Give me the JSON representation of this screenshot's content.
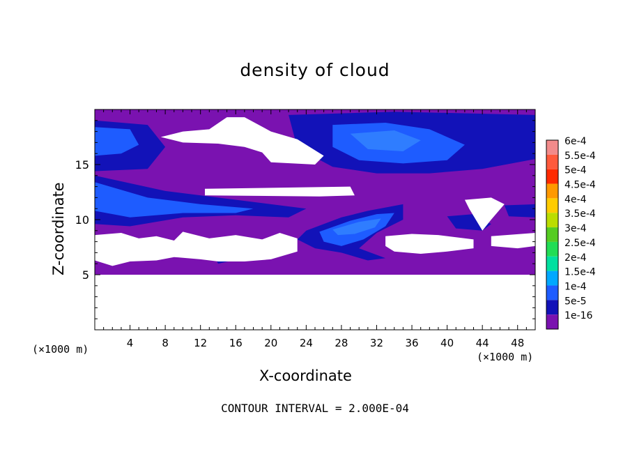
{
  "chart_data": {
    "type": "heatmap",
    "title": "density of cloud",
    "xlabel": "X-coordinate",
    "ylabel": "Z-coordinate",
    "x_unit": "(×1000 m)",
    "y_unit": "(×1000 m)",
    "xlim": [
      0,
      50
    ],
    "ylim": [
      0,
      20
    ],
    "x_ticks": [
      4,
      8,
      12,
      16,
      20,
      24,
      28,
      32,
      36,
      40,
      44,
      48
    ],
    "y_ticks": [
      5,
      10,
      15
    ],
    "colorbar": {
      "labels": [
        "6e-4",
        "5.5e-4",
        "5e-4",
        "4.5e-4",
        "4e-4",
        "3.5e-4",
        "3e-4",
        "2.5e-4",
        "2e-4",
        "1.5e-4",
        "1e-4",
        "5e-5",
        "1e-16"
      ],
      "colors": [
        "#f28b8b",
        "#ff5a3c",
        "#ff2a00",
        "#ff9900",
        "#ffcc00",
        "#bbdd00",
        "#55cc22",
        "#22dd55",
        "#00e0a0",
        "#00a8ff",
        "#1e5cff",
        "#1212b8",
        "#7a12b0"
      ]
    },
    "field_colors": {
      "base": "#7a12b0",
      "level_5e-5": "#1212b8",
      "level_1e-4": "#1e5cff",
      "level_1.5e-4": "#2f7dff",
      "no_cloud": "#ffffff"
    },
    "regions": [
      {
        "level": "clear",
        "polygon": [
          [
            0,
            0
          ],
          [
            50,
            0
          ],
          [
            50,
            5
          ],
          [
            0,
            5
          ]
        ]
      },
      {
        "level": "5e-5",
        "polygon": [
          [
            22,
            19.5
          ],
          [
            34,
            19.8
          ],
          [
            50,
            19.5
          ],
          [
            50,
            15.5
          ],
          [
            44,
            14.6
          ],
          [
            38,
            14.2
          ],
          [
            32,
            14.2
          ],
          [
            27,
            14.8
          ],
          [
            23,
            16.5
          ]
        ]
      },
      {
        "level": "1e-4",
        "polygon": [
          [
            27,
            18.6
          ],
          [
            33,
            18.8
          ],
          [
            38,
            18.2
          ],
          [
            42,
            16.8
          ],
          [
            40,
            15.4
          ],
          [
            35,
            15.1
          ],
          [
            30,
            15.4
          ],
          [
            27,
            16.6
          ]
        ]
      },
      {
        "level": "1.5e-4",
        "polygon": [
          [
            29,
            17.8
          ],
          [
            34,
            18.1
          ],
          [
            37,
            17.2
          ],
          [
            35,
            16.2
          ],
          [
            31,
            16.4
          ]
        ]
      },
      {
        "level": "5e-5",
        "polygon": [
          [
            0,
            19
          ],
          [
            6,
            18.6
          ],
          [
            8,
            16.6
          ],
          [
            6,
            14.6
          ],
          [
            0,
            14.4
          ]
        ]
      },
      {
        "level": "1e-4",
        "polygon": [
          [
            0,
            18.4
          ],
          [
            4,
            18.2
          ],
          [
            5,
            16.8
          ],
          [
            3,
            16
          ],
          [
            0,
            15.8
          ]
        ]
      },
      {
        "level": "5e-5",
        "polygon": [
          [
            0,
            14
          ],
          [
            8,
            12.6
          ],
          [
            14,
            12
          ],
          [
            20,
            11.4
          ],
          [
            24,
            11
          ],
          [
            22,
            10.2
          ],
          [
            16,
            10.4
          ],
          [
            10,
            10.2
          ],
          [
            4,
            9.4
          ],
          [
            0,
            9.6
          ]
        ]
      },
      {
        "level": "1e-4",
        "polygon": [
          [
            0,
            13.4
          ],
          [
            6,
            12
          ],
          [
            12,
            11.4
          ],
          [
            18,
            11
          ],
          [
            16,
            10.6
          ],
          [
            10,
            10.6
          ],
          [
            4,
            10.2
          ],
          [
            0,
            10.8
          ]
        ]
      },
      {
        "level": "5e-5",
        "polygon": [
          [
            24,
            9
          ],
          [
            28,
            10.2
          ],
          [
            31,
            10.8
          ],
          [
            35,
            11.4
          ],
          [
            35,
            10
          ],
          [
            32,
            8.8
          ],
          [
            30,
            7.4
          ],
          [
            33,
            6.5
          ],
          [
            31,
            6.3
          ],
          [
            28,
            7
          ],
          [
            25,
            7.4
          ],
          [
            23,
            8.2
          ]
        ]
      },
      {
        "level": "1e-4",
        "polygon": [
          [
            25.5,
            8.9
          ],
          [
            29,
            9.9
          ],
          [
            32,
            10.5
          ],
          [
            34,
            10.6
          ],
          [
            33,
            9.4
          ],
          [
            30.5,
            8.2
          ],
          [
            28,
            7.6
          ],
          [
            26,
            8
          ]
        ]
      },
      {
        "level": "1.5e-4",
        "polygon": [
          [
            27,
            9.1
          ],
          [
            30,
            9.8
          ],
          [
            32.5,
            10.1
          ],
          [
            31.8,
            9.3
          ],
          [
            29.5,
            8.7
          ],
          [
            27.6,
            8.6
          ]
        ]
      },
      {
        "level": "5e-5",
        "polygon": [
          [
            40,
            10.3
          ],
          [
            43,
            10.5
          ],
          [
            45,
            9.6
          ],
          [
            44,
            9
          ],
          [
            41,
            9.2
          ]
        ]
      },
      {
        "level": "5e-5",
        "polygon": [
          [
            46.5,
            11.3
          ],
          [
            50,
            11.4
          ],
          [
            50,
            10.2
          ],
          [
            47,
            10.3
          ]
        ]
      },
      {
        "level": "5e-5",
        "polygon": [
          [
            13.3,
            7.1
          ],
          [
            15.3,
            7.3
          ],
          [
            16.2,
            6.4
          ],
          [
            14,
            6
          ]
        ]
      },
      {
        "level": "clear",
        "polygon": [
          [
            7.5,
            17.5
          ],
          [
            10,
            18
          ],
          [
            13,
            18.2
          ],
          [
            15,
            19.3
          ],
          [
            17,
            19.3
          ],
          [
            20,
            18
          ],
          [
            23,
            17.3
          ],
          [
            26,
            15.8
          ],
          [
            25,
            15
          ],
          [
            20,
            15.2
          ],
          [
            19,
            16.1
          ],
          [
            17,
            16.6
          ],
          [
            14,
            16.9
          ],
          [
            10,
            17
          ]
        ]
      },
      {
        "level": "clear",
        "polygon": [
          [
            12.5,
            12.8
          ],
          [
            29,
            13
          ],
          [
            29.5,
            12.2
          ],
          [
            25.5,
            12.1
          ],
          [
            12.5,
            12.2
          ]
        ]
      },
      {
        "level": "clear",
        "polygon": [
          [
            0,
            8.6
          ],
          [
            3,
            8.8
          ],
          [
            5,
            8.3
          ],
          [
            7,
            8.5
          ],
          [
            9,
            8.1
          ],
          [
            10,
            8.9
          ],
          [
            13,
            8.3
          ],
          [
            16,
            8.6
          ],
          [
            19,
            8.2
          ],
          [
            21,
            8.8
          ],
          [
            23,
            8.3
          ],
          [
            23,
            7.1
          ],
          [
            20,
            6.4
          ],
          [
            17,
            6.2
          ],
          [
            14,
            6.2
          ],
          [
            12,
            6.4
          ],
          [
            9,
            6.6
          ],
          [
            7,
            6.3
          ],
          [
            4,
            6.2
          ],
          [
            2,
            5.8
          ],
          [
            0,
            6.3
          ]
        ]
      },
      {
        "level": "clear",
        "polygon": [
          [
            33,
            8.5
          ],
          [
            36,
            8.7
          ],
          [
            39,
            8.6
          ],
          [
            43,
            8.2
          ],
          [
            43,
            7.4
          ],
          [
            40,
            7.1
          ],
          [
            37,
            6.9
          ],
          [
            34,
            7.1
          ],
          [
            33,
            7.6
          ]
        ]
      },
      {
        "level": "clear",
        "polygon": [
          [
            42,
            11.8
          ],
          [
            45,
            12
          ],
          [
            46.5,
            11.4
          ],
          [
            45,
            10
          ],
          [
            44,
            9
          ],
          [
            42.5,
            11
          ]
        ]
      },
      {
        "level": "clear",
        "polygon": [
          [
            45,
            8.5
          ],
          [
            50,
            8.8
          ],
          [
            50,
            7.6
          ],
          [
            48,
            7.4
          ],
          [
            45,
            7.6
          ]
        ]
      }
    ]
  },
  "footer": {
    "contour_interval": "CONTOUR INTERVAL = 2.000E-04"
  }
}
